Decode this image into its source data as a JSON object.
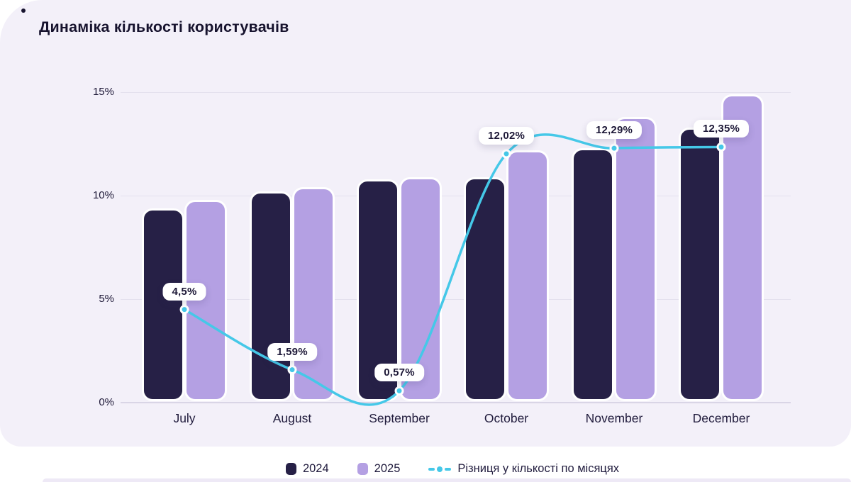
{
  "page": {
    "title": "Динаміка кількості користувачів"
  },
  "chart_data": {
    "type": "bar+line",
    "title": "Динаміка кількості користувачів",
    "categories": [
      "July",
      "August",
      "September",
      "October",
      "November",
      "December"
    ],
    "series": [
      {
        "name": "2024",
        "color": "#262046",
        "values": [
          9.4,
          10.2,
          10.8,
          10.9,
          12.3,
          13.3
        ]
      },
      {
        "name": "2025",
        "color": "#b4a0e3",
        "values": [
          9.8,
          10.4,
          10.9,
          12.2,
          13.8,
          14.9
        ]
      }
    ],
    "line_series": {
      "name": "Різниця у кількості по місяцях",
      "color": "#45c8e8",
      "values": [
        4.5,
        1.59,
        0.57,
        12.02,
        12.29,
        12.35
      ],
      "labels": [
        "4,5%",
        "1,59%",
        "0,57%",
        "12,02%",
        "12,29%",
        "12,35%"
      ]
    },
    "y_ticks": [
      "0%",
      "5%",
      "10%",
      "15%"
    ],
    "ylim": [
      0,
      15
    ],
    "grid": true,
    "legend_position": "bottom"
  },
  "colors": {
    "card_background": "#f3f0f9",
    "bar_2024": "#262046",
    "bar_2025": "#b4a0e3",
    "line": "#45c8e8",
    "text_dark": "#1d1837"
  }
}
